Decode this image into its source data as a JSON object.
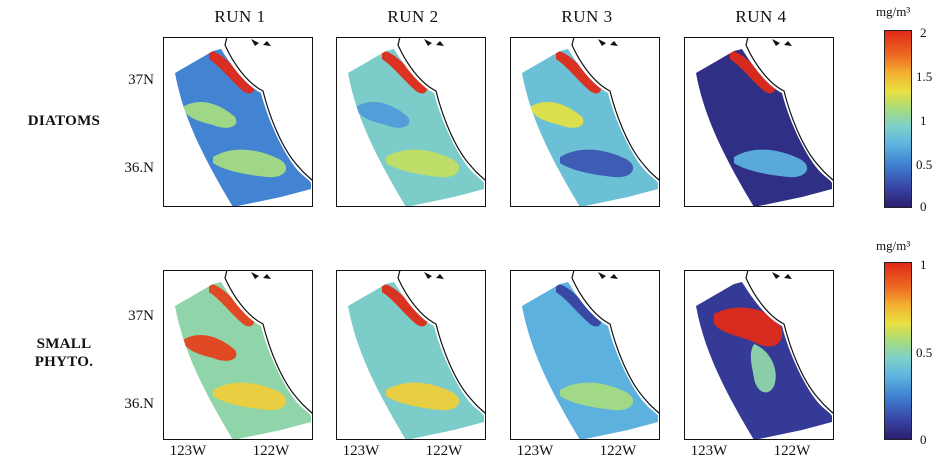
{
  "columns": [
    "RUN 1",
    "RUN 2",
    "RUN 3",
    "RUN 4"
  ],
  "rows": [
    {
      "label_line1": "DIATOMS",
      "label_line2": "",
      "colorbar": {
        "unit": "mg/m³",
        "ticks": [
          "2",
          "1.5",
          "1",
          "0.5",
          "0"
        ]
      }
    },
    {
      "label_line1": "SMALL",
      "label_line2": "PHYTO.",
      "colorbar": {
        "unit": "mg/m³",
        "ticks": [
          "1",
          "0.5",
          "0"
        ]
      }
    }
  ],
  "y_ticks": [
    "37N",
    "36.N"
  ],
  "x_ticks": [
    "123W",
    "122W"
  ],
  "chart_data": {
    "type": "heatmap",
    "panels": [
      {
        "row": "DIATOMS",
        "run": "RUN 1",
        "background_level": 0.25,
        "blobs": [
          {
            "level": 1.0
          },
          {
            "level": 0.55
          },
          {
            "level": 0.55
          }
        ]
      },
      {
        "row": "DIATOMS",
        "run": "RUN 2",
        "background_level": 0.45,
        "blobs": [
          {
            "level": 1.0
          },
          {
            "level": 0.6
          },
          {
            "level": 0.3
          }
        ]
      },
      {
        "row": "DIATOMS",
        "run": "RUN 3",
        "background_level": 0.4,
        "blobs": [
          {
            "level": 1.0
          },
          {
            "level": 0.15
          },
          {
            "level": 0.65
          }
        ]
      },
      {
        "row": "DIATOMS",
        "run": "RUN 4",
        "background_level": 0.05,
        "blobs": [
          {
            "level": 1.0
          },
          {
            "level": 0.35
          }
        ]
      },
      {
        "row": "SMALL PHYTO.",
        "run": "RUN 1",
        "background_level": 0.5,
        "blobs": [
          {
            "level": 0.95
          },
          {
            "level": 0.7
          },
          {
            "level": 0.95
          }
        ]
      },
      {
        "row": "SMALL PHYTO.",
        "run": "RUN 2",
        "background_level": 0.45,
        "blobs": [
          {
            "level": 1.0
          },
          {
            "level": 0.7
          }
        ]
      },
      {
        "row": "SMALL PHYTO.",
        "run": "RUN 3",
        "background_level": 0.35,
        "blobs": [
          {
            "level": 0.1
          },
          {
            "level": 0.55
          }
        ]
      },
      {
        "row": "SMALL PHYTO.",
        "run": "RUN 4",
        "background_level": 0.08,
        "blobs": [
          {
            "level": 1.0
          },
          {
            "level": 0.5
          }
        ]
      }
    ]
  }
}
